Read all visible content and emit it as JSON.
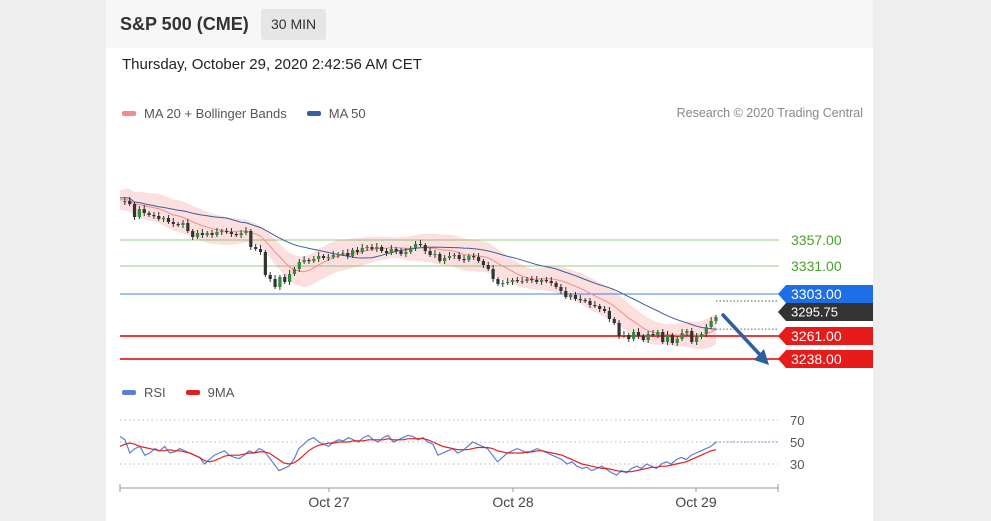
{
  "header": {
    "title": "S&P 500 (CME)",
    "timeframe": "30 MIN",
    "timestamp": "Thursday, October 29, 2020 2:42:56 AM CET"
  },
  "credit": "Research © 2020 Trading Central",
  "legend_main": [
    {
      "label": "MA 20 + Bollinger Bands",
      "color": "#f28b8b"
    },
    {
      "label": "MA 50",
      "color": "#3b5f9e"
    }
  ],
  "legend_rsi": [
    {
      "label": "RSI",
      "color": "#5b7fd6"
    },
    {
      "label": "9MA",
      "color": "#e02020"
    }
  ],
  "colors": {
    "resistance": "#4aa02c",
    "pivot": "#1d6fe8",
    "support": "#e81b1b",
    "current_price": "#333333",
    "arrow": "#2f5f9e"
  },
  "chart_data": [
    {
      "type": "candlestick",
      "x_ticks": [
        "Oct 27",
        "Oct 28",
        "Oct 29"
      ],
      "price_path": [
        3395,
        3396,
        3393,
        3380,
        3388,
        3384,
        3382,
        3381,
        3378,
        3379,
        3375,
        3373,
        3372,
        3374,
        3366,
        3360,
        3364,
        3362,
        3364,
        3362,
        3365,
        3366,
        3365,
        3363,
        3362,
        3364,
        3366,
        3350,
        3348,
        3345,
        3322,
        3318,
        3310,
        3320,
        3315,
        3323,
        3328,
        3335,
        3337,
        3336,
        3338,
        3341,
        3339,
        3340,
        3342,
        3343,
        3344,
        3341,
        3347,
        3345,
        3349,
        3350,
        3348,
        3350,
        3346,
        3344,
        3348,
        3346,
        3343,
        3345,
        3349,
        3353,
        3352,
        3346,
        3342,
        3343,
        3336,
        3339,
        3341,
        3342,
        3338,
        3337,
        3341,
        3340,
        3336,
        3332,
        3328,
        3318,
        3313,
        3314,
        3315,
        3317,
        3316,
        3316,
        3318,
        3317,
        3315,
        3317,
        3316,
        3314,
        3310,
        3306,
        3300,
        3302,
        3298,
        3297,
        3296,
        3292,
        3291,
        3288,
        3286,
        3278,
        3274,
        3261,
        3262,
        3258,
        3265,
        3261,
        3257,
        3263,
        3262,
        3265,
        3255,
        3262,
        3254,
        3258,
        3264,
        3266,
        3255,
        3260,
        3263,
        3270,
        3276,
        3280
      ],
      "ma20": {
        "start": 3388,
        "end": 3275
      },
      "ma50": {
        "start": 3390,
        "end": 3324
      },
      "levels": [
        {
          "label": "3357.00",
          "value": 3357,
          "kind": "resistance"
        },
        {
          "label": "3331.00",
          "value": 3331,
          "kind": "resistance"
        },
        {
          "label": "3303.00",
          "value": 3303,
          "kind": "pivot"
        },
        {
          "label": "3261.00",
          "value": 3261,
          "kind": "support"
        },
        {
          "label": "3238.00",
          "value": 3238,
          "kind": "support"
        }
      ],
      "current_price": {
        "label": "3295.75",
        "value": 3296
      },
      "forecast_arrow": {
        "from": 3290,
        "to": 3240
      }
    },
    {
      "type": "line",
      "indicator": "RSI",
      "y_ticks": [
        70,
        50,
        30
      ],
      "ylim": [
        20,
        80
      ],
      "rsi": [
        55,
        52,
        40,
        44,
        46,
        38,
        40,
        44,
        42,
        46,
        40,
        41,
        44,
        42,
        40,
        38,
        36,
        30,
        34,
        38,
        40,
        42,
        38,
        36,
        35,
        38,
        42,
        40,
        44,
        42,
        36,
        30,
        24,
        26,
        28,
        34,
        44,
        48,
        52,
        54,
        50,
        48,
        46,
        50,
        52,
        51,
        54,
        52,
        50,
        54,
        56,
        52,
        50,
        54,
        56,
        50,
        52,
        54,
        56,
        55,
        52,
        54,
        50,
        48,
        38,
        40,
        42,
        44,
        40,
        42,
        46,
        50,
        48,
        46,
        44,
        38,
        32,
        36,
        40,
        42,
        44,
        42,
        40,
        42,
        44,
        42,
        40,
        38,
        36,
        34,
        30,
        32,
        28,
        26,
        27,
        24,
        26,
        28,
        25,
        22,
        20,
        24,
        22,
        26,
        28,
        26,
        30,
        28,
        26,
        30,
        32,
        30,
        34,
        36,
        34,
        38,
        40,
        42,
        44,
        46,
        50
      ],
      "ma9": [
        46,
        48,
        49,
        48,
        46,
        45,
        44,
        43,
        42,
        42,
        43,
        42,
        42,
        41,
        40,
        38,
        36,
        33,
        32,
        33,
        35,
        37,
        38,
        38,
        38,
        39,
        40,
        40,
        41,
        41,
        40,
        37,
        34,
        31,
        30,
        31,
        34,
        38,
        42,
        45,
        47,
        48,
        49,
        49,
        50,
        50,
        50,
        51,
        51,
        51,
        52,
        52,
        52,
        52,
        53,
        52,
        52,
        52,
        53,
        53,
        53,
        53,
        52,
        50,
        48,
        46,
        45,
        44,
        43,
        43,
        43,
        44,
        45,
        45,
        45,
        44,
        42,
        41,
        40,
        40,
        40,
        40,
        41,
        41,
        42,
        42,
        41,
        40,
        39,
        38,
        36,
        34,
        32,
        30,
        29,
        28,
        27,
        26,
        26,
        25,
        24,
        23,
        23,
        23,
        24,
        25,
        26,
        27,
        27,
        28,
        28,
        29,
        30,
        31,
        32,
        34,
        36,
        38,
        40,
        42,
        43
      ]
    }
  ]
}
